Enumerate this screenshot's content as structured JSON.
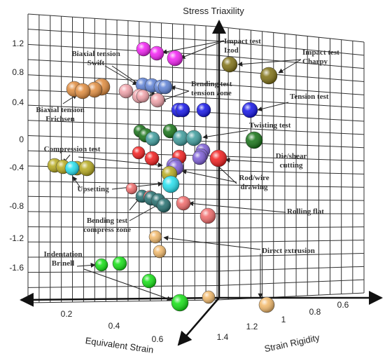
{
  "chart_data": {
    "type": "scatter",
    "title": "",
    "axes": {
      "z": {
        "label": "Stress Triaxility",
        "ticks": [
          "1.2",
          "0.8",
          "0.4",
          "0",
          "-0.4",
          "-0.8",
          "-1.2",
          "-1.6"
        ]
      },
      "x": {
        "label": "Equivalent Strain",
        "ticks": [
          "0.2",
          "0.4",
          "0.6"
        ]
      },
      "y": {
        "label": "Strain Rigidity",
        "ticks": [
          "1.4",
          "1.2",
          "1",
          "0.8",
          "0.6"
        ]
      }
    },
    "grid": true,
    "colors": {
      "magenta": "#f21df2",
      "olive": "#7d6e10",
      "blue": "#1010e6",
      "steelblue": "#5b7fd4",
      "pink": "#f0a0a8",
      "orange": "#e08a3a",
      "darkgreen": "#127012",
      "teal": "#3a9a9a",
      "darkteal": "#1f6b6b",
      "red": "#f21a1a",
      "purple": "#7a5ad6",
      "yellowolive": "#b5a81a",
      "cyan": "#22e0ee",
      "salmon": "#f06868",
      "lightorange": "#f2b868",
      "green": "#10e010"
    },
    "groups": [
      {
        "name": "Impact test Izod",
        "color": "magenta",
        "points": [
          [
            0.5,
            1.0,
            1.13
          ],
          [
            0.45,
            1.0,
            1.1
          ],
          [
            0.55,
            1.0,
            1.05
          ]
        ]
      },
      {
        "name": "Impact test Charpy",
        "color": "olive",
        "points": [
          [
            0.7,
            0.75,
            0.96
          ],
          [
            0.75,
            0.7,
            0.87
          ]
        ]
      },
      {
        "name": "Bending test tension zone",
        "color": "steelblue",
        "points": [
          [
            0.4,
            1.0,
            0.72
          ],
          [
            0.42,
            1.0,
            0.7
          ],
          [
            0.44,
            1.0,
            0.72
          ],
          [
            0.46,
            1.0,
            0.7
          ]
        ]
      },
      {
        "name": "Biaxial tension Swift",
        "color": "pink",
        "points": [
          [
            0.3,
            1.1,
            0.64
          ],
          [
            0.32,
            1.1,
            0.6
          ],
          [
            0.35,
            1.1,
            0.58
          ],
          [
            0.36,
            1.1,
            0.55
          ]
        ]
      },
      {
        "name": "Biaxial tension Erichsen",
        "color": "orange",
        "points": [
          [
            0.2,
            1.2,
            0.67
          ],
          [
            0.22,
            1.2,
            0.66
          ],
          [
            0.24,
            1.2,
            0.64
          ],
          [
            0.26,
            1.2,
            0.67
          ]
        ]
      },
      {
        "name": "Tension test",
        "color": "blue",
        "points": [
          [
            0.5,
            1.0,
            0.41
          ],
          [
            0.52,
            1.0,
            0.41
          ],
          [
            0.55,
            1.0,
            0.39
          ],
          [
            0.6,
            0.85,
            0.38
          ]
        ]
      },
      {
        "name": "Twisting test",
        "color": "darkgreen",
        "points": [
          [
            0.3,
            1.2,
            0.06
          ],
          [
            0.35,
            1.2,
            0.04
          ],
          [
            0.4,
            1.1,
            0.06
          ],
          [
            0.7,
            0.7,
            -0.04
          ]
        ]
      },
      {
        "name": "Twisting test",
        "color": "teal",
        "points": [
          [
            0.4,
            1.2,
            -0.02
          ],
          [
            0.45,
            1.1,
            0.0
          ],
          [
            0.5,
            1.0,
            -0.02
          ]
        ]
      },
      {
        "name": "Die/shear cutting",
        "color": "purple",
        "points": [
          [
            0.55,
            0.9,
            -0.2
          ],
          [
            0.56,
            0.9,
            -0.24
          ],
          [
            0.6,
            0.85,
            -0.28
          ]
        ]
      },
      {
        "name": "Die/shear cutting",
        "color": "red",
        "points": [
          [
            0.3,
            1.2,
            -0.2
          ],
          [
            0.35,
            1.2,
            -0.27
          ],
          [
            0.4,
            1.1,
            -0.28
          ],
          [
            0.55,
            0.9,
            -0.26
          ]
        ]
      },
      {
        "name": "Compression test",
        "color": "yellowolive",
        "points": [
          [
            0.1,
            1.4,
            -0.38
          ],
          [
            0.12,
            1.4,
            -0.39
          ],
          [
            0.14,
            1.4,
            -0.4
          ],
          [
            0.16,
            1.4,
            -0.4
          ]
        ]
      },
      {
        "name": "Upsetting",
        "color": "cyan",
        "points": [
          [
            0.13,
            1.4,
            -0.42
          ],
          [
            0.42,
            1.1,
            -0.62
          ]
        ]
      },
      {
        "name": "Rod/wire drawing",
        "color": "purple",
        "points": [
          [
            0.42,
            1.1,
            -0.5
          ],
          [
            0.45,
            1.1,
            -0.55
          ]
        ]
      },
      {
        "name": "Rod/wire drawing",
        "color": "yellowolive",
        "points": [
          [
            0.42,
            1.1,
            -0.57
          ]
        ]
      },
      {
        "name": "Bending test compress zone",
        "color": "darkteal",
        "points": [
          [
            0.3,
            1.2,
            -0.82
          ],
          [
            0.35,
            1.2,
            -0.84
          ],
          [
            0.4,
            1.1,
            -0.87
          ],
          [
            0.45,
            1.1,
            -0.9
          ]
        ]
      },
      {
        "name": "Rolling flat",
        "color": "salmon",
        "points": [
          [
            0.25,
            1.2,
            -0.7
          ],
          [
            0.35,
            1.2,
            -0.8
          ],
          [
            0.5,
            1.0,
            -0.88
          ],
          [
            0.6,
            0.9,
            -1.0
          ]
        ]
      },
      {
        "name": "Direct extrusion",
        "color": "lightorange",
        "points": [
          [
            0.4,
            1.2,
            -1.28
          ],
          [
            0.42,
            1.2,
            -1.4
          ],
          [
            0.55,
            1.2,
            -1.7
          ],
          [
            0.75,
            0.8,
            -1.75
          ]
        ]
      },
      {
        "name": "Indentation Brinell",
        "color": "green",
        "points": [
          [
            0.25,
            1.3,
            -1.55
          ],
          [
            0.3,
            1.3,
            -1.55
          ],
          [
            0.4,
            1.2,
            -1.7
          ],
          [
            0.55,
            1.1,
            -1.78
          ]
        ]
      }
    ],
    "annotations": [
      {
        "lines": [
          "Impact test",
          "Izod"
        ]
      },
      {
        "lines": [
          "Impact test",
          "Charpy"
        ]
      },
      {
        "lines": [
          "Biaxial tension",
          "Swift"
        ]
      },
      {
        "lines": [
          "Bending test",
          "tension zone"
        ]
      },
      {
        "lines": [
          "Biaxial tension",
          "Erichsen"
        ]
      },
      {
        "lines": [
          "Tension test"
        ]
      },
      {
        "lines": [
          "Twisting test"
        ]
      },
      {
        "lines": [
          "Compression test"
        ]
      },
      {
        "lines": [
          "Die/shear",
          "cutting"
        ]
      },
      {
        "lines": [
          "Rod/wire",
          "drawing"
        ]
      },
      {
        "lines": [
          "Upsetting"
        ]
      },
      {
        "lines": [
          "Rolling flat"
        ]
      },
      {
        "lines": [
          "Bending test",
          "compress zone"
        ]
      },
      {
        "lines": [
          "Direct extrusion"
        ]
      },
      {
        "lines": [
          "Indentation",
          "Brinell"
        ]
      }
    ]
  }
}
